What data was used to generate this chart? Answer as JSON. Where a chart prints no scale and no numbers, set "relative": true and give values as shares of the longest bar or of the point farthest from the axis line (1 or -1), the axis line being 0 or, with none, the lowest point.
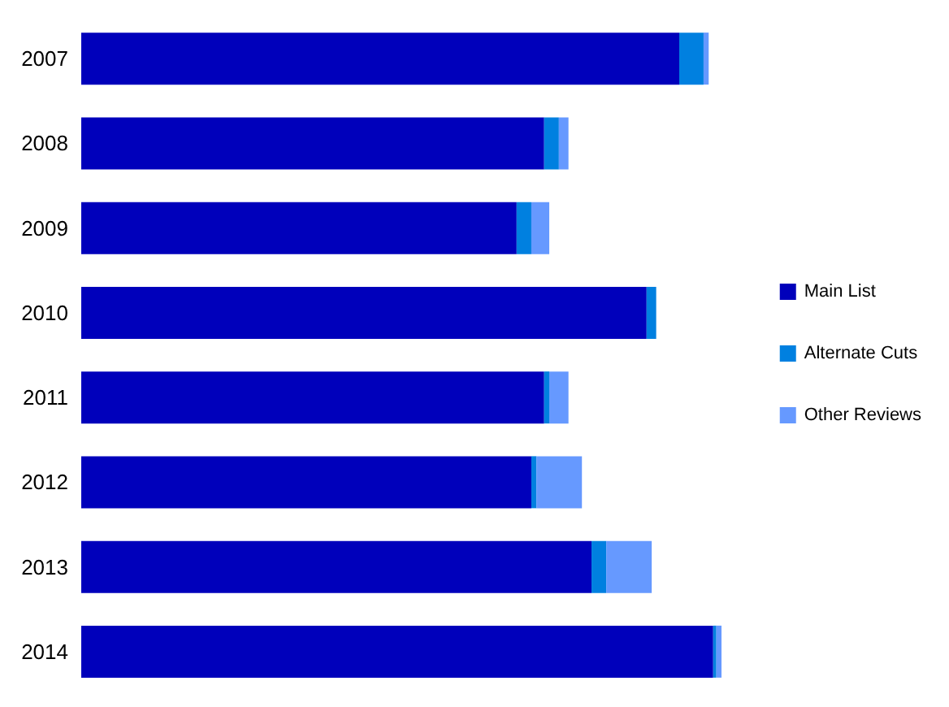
{
  "chart_data": {
    "type": "bar",
    "orientation": "horizontal",
    "stacked": true,
    "relative": true,
    "legend": "right",
    "categories": [
      "2007",
      "2008",
      "2009",
      "2010",
      "2011",
      "2012",
      "2013",
      "2014"
    ],
    "series": [
      {
        "name": "Main List",
        "color": "#0000bb",
        "values": [
          0.934,
          0.723,
          0.68,
          0.883,
          0.723,
          0.703,
          0.797,
          0.987
        ]
      },
      {
        "name": "Alternate Cuts",
        "color": "#0080e0",
        "values": [
          0.038,
          0.023,
          0.023,
          0.015,
          0.008,
          0.008,
          0.023,
          0.005
        ]
      },
      {
        "name": "Other Reviews",
        "color": "#6699ff",
        "values": [
          0.008,
          0.015,
          0.028,
          0,
          0.03,
          0.071,
          0.071,
          0.008
        ]
      }
    ]
  }
}
